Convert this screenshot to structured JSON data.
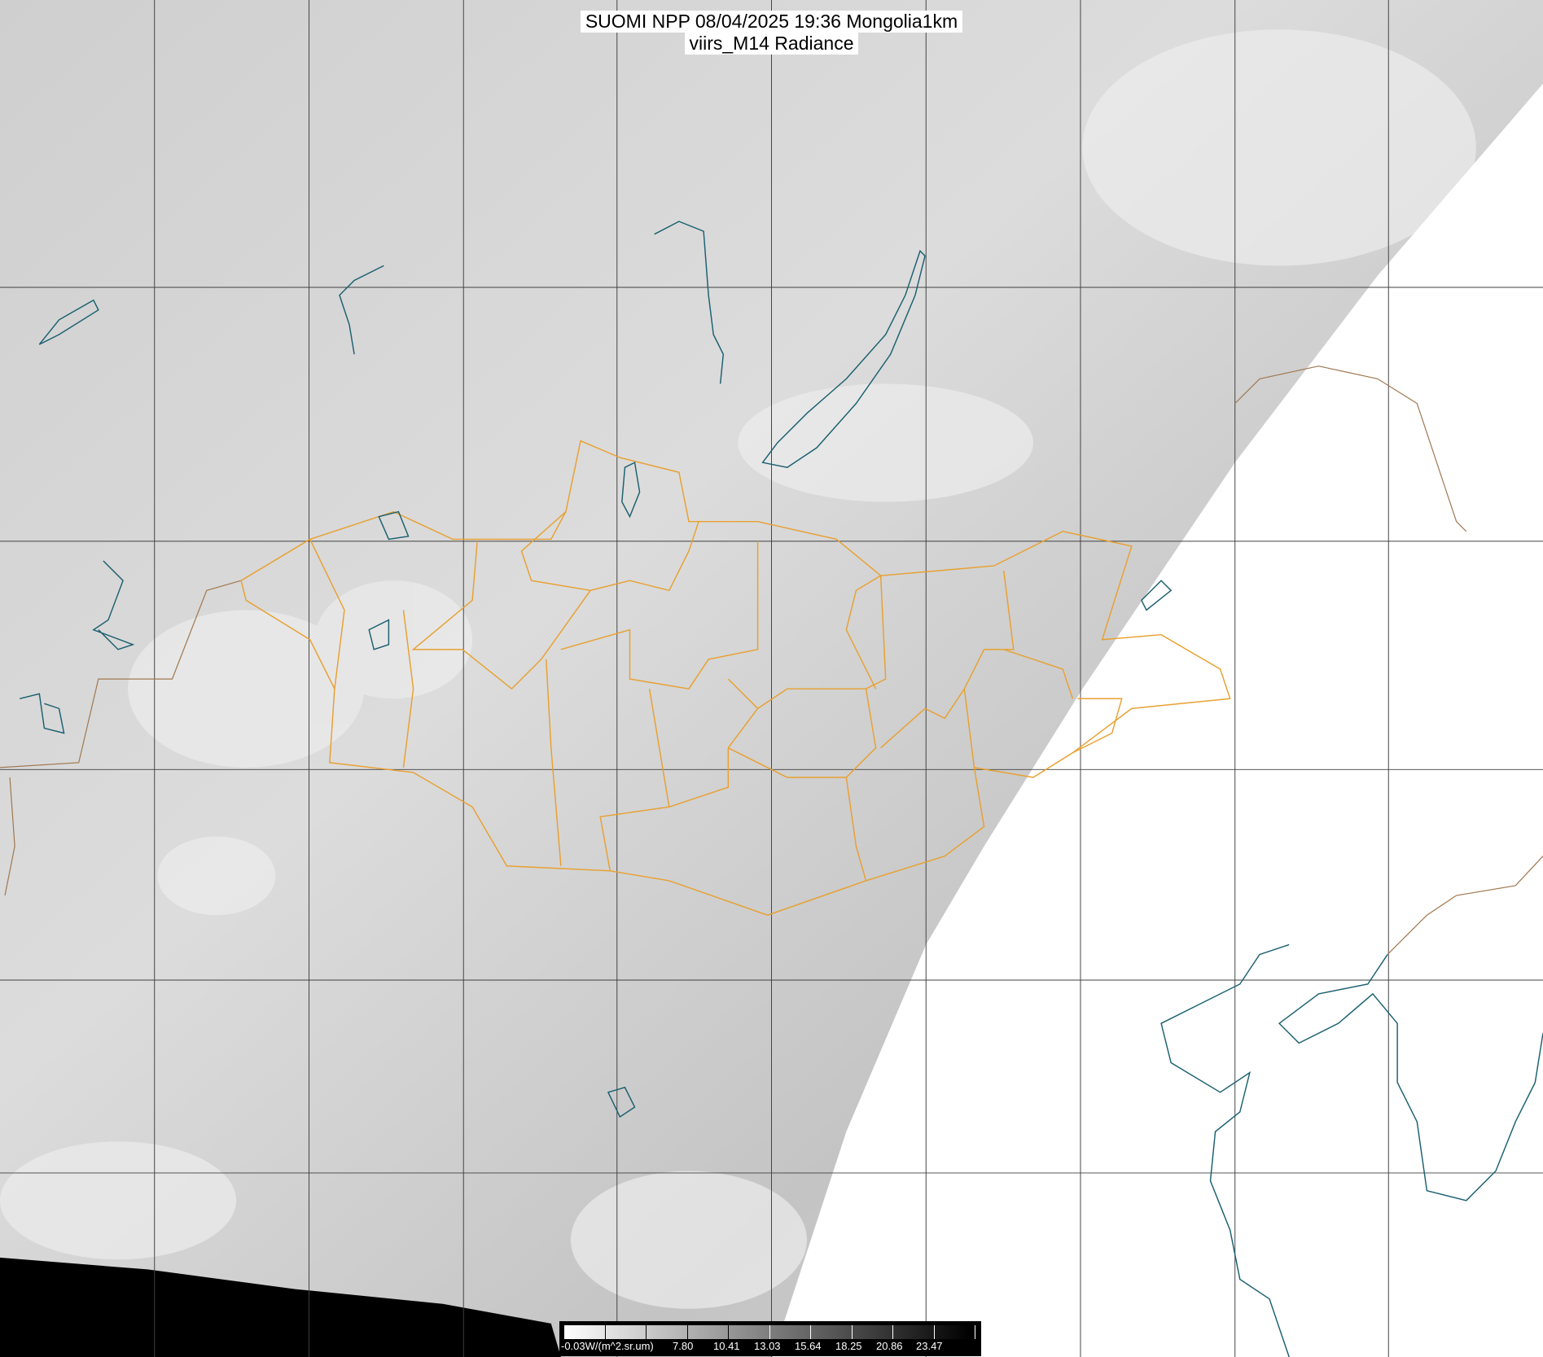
{
  "title": {
    "line1": "SUOMI NPP 08/04/2025 19:36 Mongolia1km",
    "line2": "viirs_M14 Radiance"
  },
  "colorbar": {
    "labels": [
      "-0.03W/(m^2.sr.um)",
      "7.80",
      "10.41",
      "13.03",
      "15.64",
      "18.25",
      "20.86",
      "23.47"
    ],
    "min_color": "#ffffff",
    "max_color": "#000000"
  },
  "colors": {
    "province_borders": "#e8a030",
    "country_borders": "#a07850",
    "water_bodies": "#1a6070",
    "grid": "#404040",
    "no_data_swath_gap": "#ffffff",
    "no_data_space": "#000000"
  }
}
